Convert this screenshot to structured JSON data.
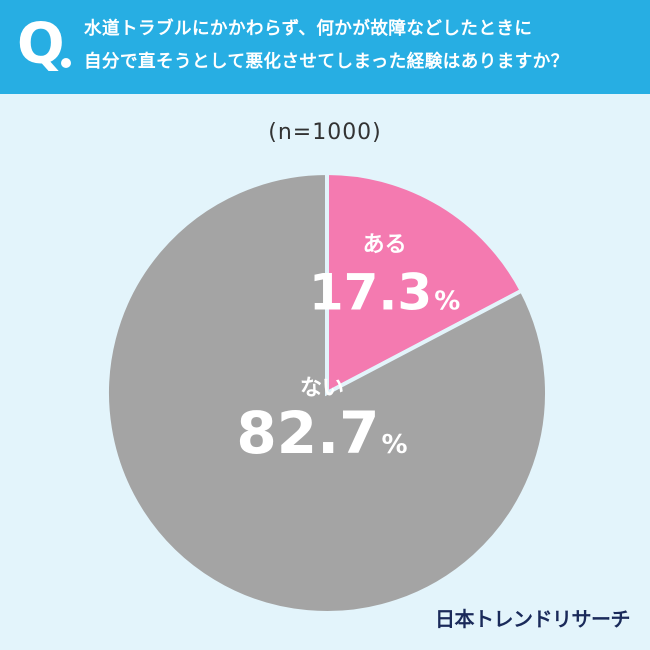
{
  "header": {
    "q_label": "Q",
    "question_line1": "水道トラブルにかかわらず、何かが故障などしたときに",
    "question_line2": "自分で直そうとして悪化させてしまった経験はありますか？"
  },
  "sample_size": "(n=1000)",
  "chart_data": {
    "type": "pie",
    "title": "",
    "slices": [
      {
        "label": "ある",
        "value": 17.3,
        "display": "17.3",
        "unit": "%",
        "color": "#f47ab0"
      },
      {
        "label": "ない",
        "value": 82.7,
        "display": "82.7",
        "unit": "%",
        "color": "#a4a4a4"
      }
    ]
  },
  "footer": {
    "brand": "日本トレンドリサーチ"
  },
  "colors": {
    "header_bg": "#27aee3",
    "page_bg": "#e3f4fb",
    "separator": "#e3f4fb"
  }
}
